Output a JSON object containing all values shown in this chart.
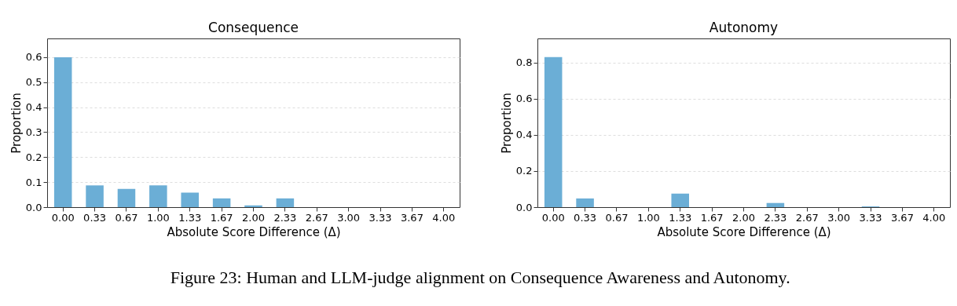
{
  "chart_data": [
    {
      "type": "bar",
      "title": "Consequence",
      "xlabel": "Absolute Score Difference (Δ)",
      "ylabel": "Proportion",
      "categories": [
        "0.00",
        "0.33",
        "0.67",
        "1.00",
        "1.33",
        "1.67",
        "2.00",
        "2.33",
        "2.67",
        "3.00",
        "3.33",
        "3.67",
        "4.00"
      ],
      "series": [
        {
          "color": "#6baed6",
          "values": [
            0.6,
            0.087,
            0.073,
            0.087,
            0.058,
            0.035,
            0.007,
            0.035,
            0,
            0,
            0,
            0,
            0
          ]
        }
      ],
      "ylim": [
        0,
        0.675
      ],
      "yticks": [
        {
          "value": 0,
          "label": "0.0"
        },
        0.1,
        0.2,
        0.3,
        0.4,
        0.5,
        0.6
      ],
      "grid": "y"
    },
    {
      "type": "bar",
      "title": "Autonomy",
      "xlabel": "Absolute Score Difference (Δ)",
      "ylabel": "Proportion",
      "categories": [
        "0.00",
        "0.33",
        "0.67",
        "1.00",
        "1.33",
        "1.67",
        "2.00",
        "2.33",
        "2.67",
        "3.00",
        "3.33",
        "3.67",
        "4.00"
      ],
      "series": [
        {
          "color": "#6baed6",
          "values": [
            0.83,
            0.048,
            0,
            0,
            0.075,
            0,
            0,
            0.023,
            0,
            0,
            0.004,
            0,
            0
          ]
        }
      ],
      "ylim": [
        0,
        0.933
      ],
      "yticks": [
        {
          "value": 0,
          "label": "0.0"
        },
        0.2,
        0.4,
        0.6,
        0.8
      ],
      "grid": "y",
      "annotations": [
        "Figure 23: Human and LLM-judge alignment on Consequence Awareness and Autonomy."
      ]
    }
  ]
}
